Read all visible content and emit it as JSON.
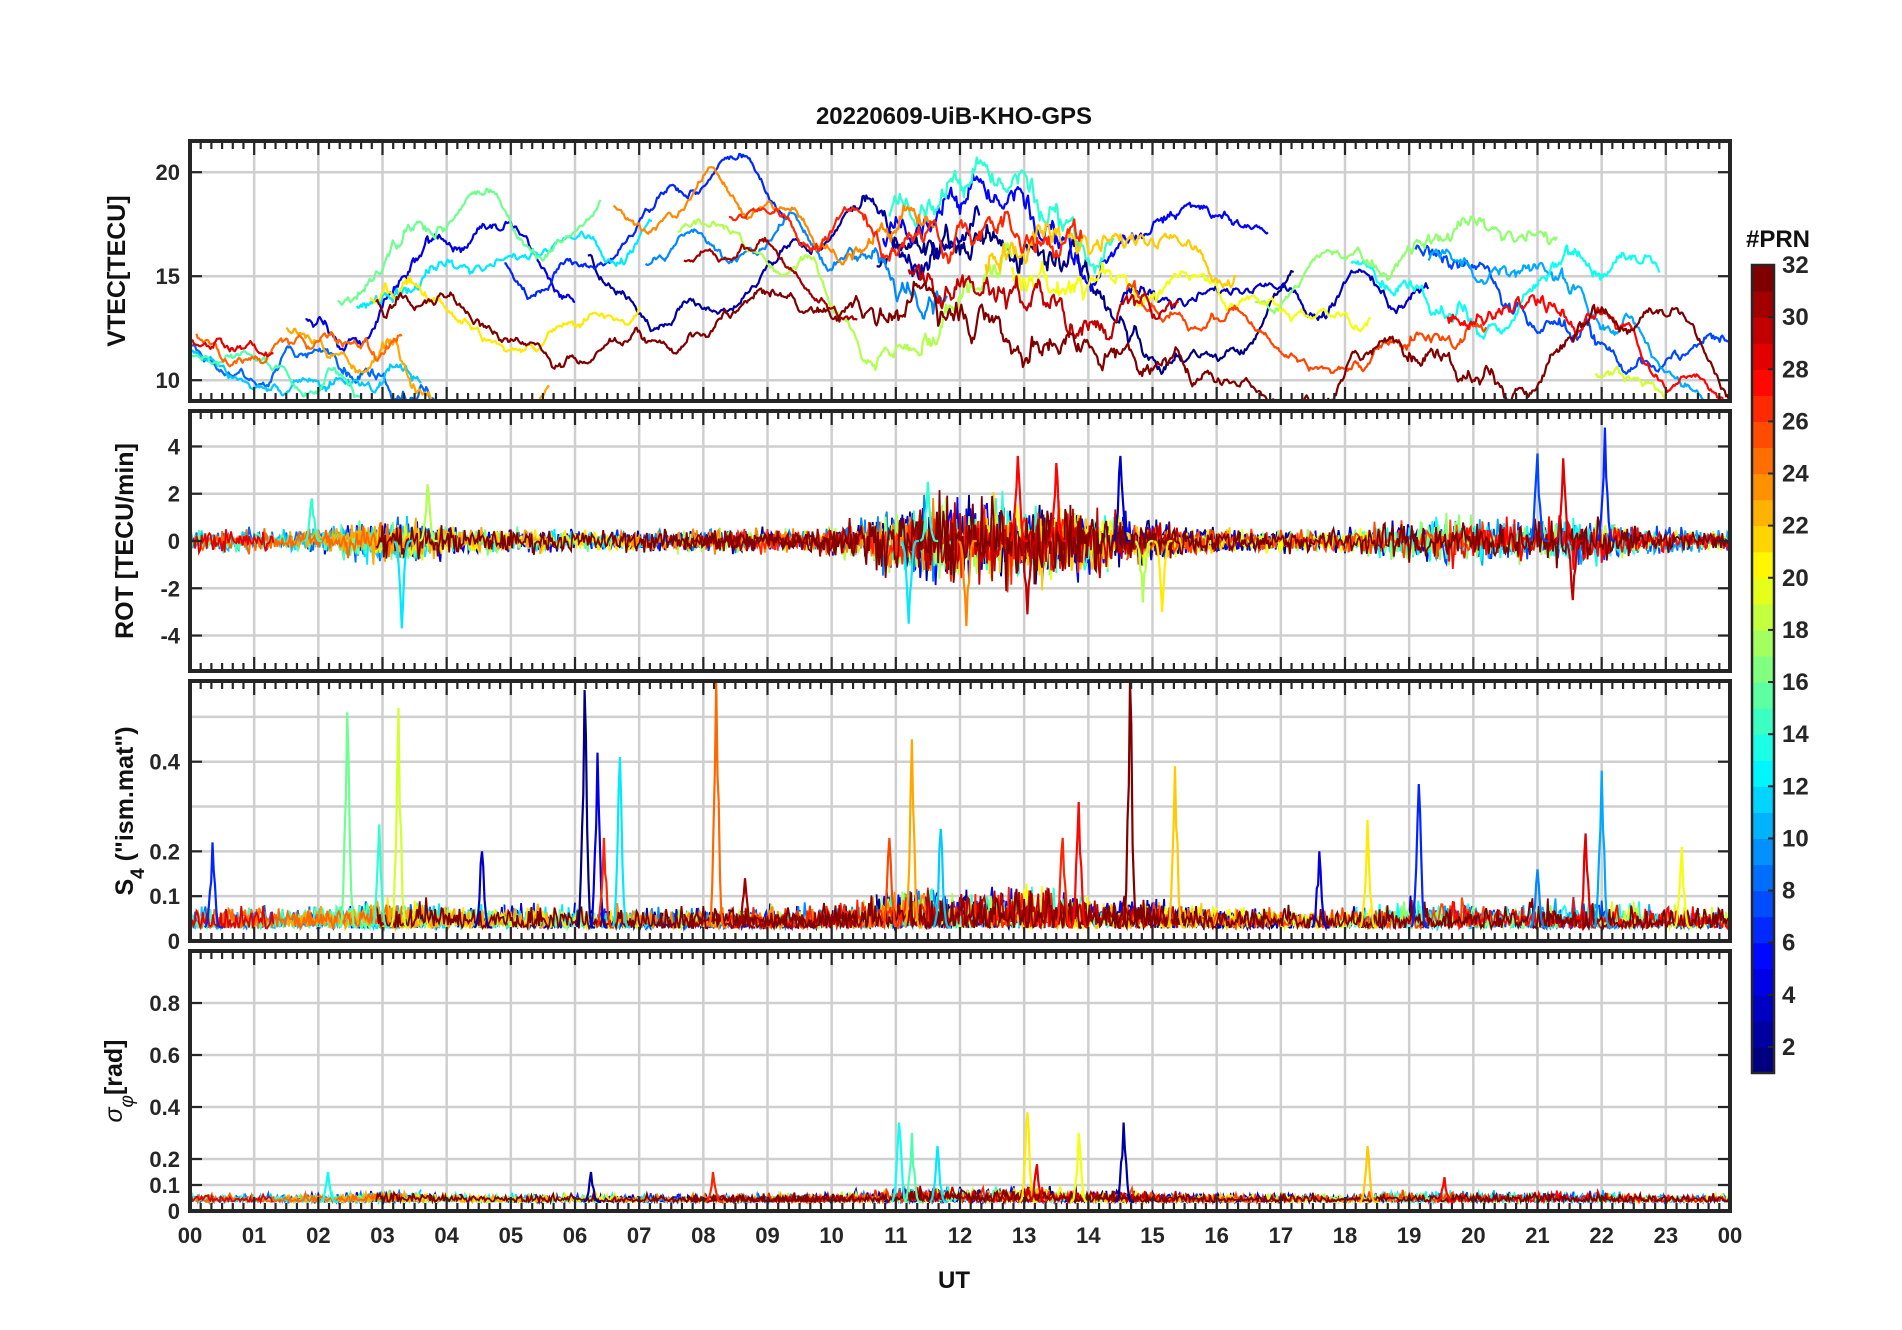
{
  "chart_data": {
    "type": "line",
    "title": "20220609-UiB-KHO-GPS",
    "xlabel": "UT",
    "x_range_hours": [
      0,
      24
    ],
    "xtick_labels": [
      "00",
      "01",
      "02",
      "03",
      "04",
      "05",
      "06",
      "07",
      "08",
      "09",
      "10",
      "11",
      "12",
      "13",
      "14",
      "15",
      "16",
      "17",
      "18",
      "19",
      "20",
      "21",
      "22",
      "23",
      "00"
    ],
    "colorbar": {
      "label": "#PRN",
      "colormap": "jet",
      "range": [
        1,
        32
      ],
      "tick_labels": [
        "2",
        "4",
        "6",
        "8",
        "10",
        "12",
        "14",
        "16",
        "18",
        "20",
        "22",
        "24",
        "26",
        "28",
        "30",
        "32"
      ]
    },
    "panels": [
      {
        "id": "vtec",
        "ylabel": "VTEC[TECU]",
        "ylim": [
          9,
          21.5
        ],
        "ytick_values": [
          10,
          15,
          20
        ],
        "ytick_labels": [
          "10",
          "15",
          "20"
        ],
        "baseline_by_hour": [
          13,
          12.8,
          13,
          13.8,
          14.5,
          14,
          15.5,
          16,
          16,
          15.5,
          15,
          15.5,
          16,
          15.5,
          15,
          14.5,
          14,
          14,
          14.5,
          15.5,
          15.5,
          14.5,
          13,
          11.5,
          11
        ]
      },
      {
        "id": "rot",
        "ylabel": "ROT [TECU/min]",
        "ylim": [
          -5.5,
          5.5
        ],
        "ytick_values": [
          -4,
          -2,
          0,
          2,
          4
        ],
        "ytick_labels": [
          "-4",
          "-2",
          "0",
          "2",
          "4"
        ]
      },
      {
        "id": "s4",
        "ylabel_main": "S",
        "ylabel_sub": "4",
        "ylabel_rest": " (\"ism.mat\")",
        "ylim": [
          0,
          0.58
        ],
        "ytick_values": [
          0,
          0.1,
          0.2,
          0.4
        ],
        "ytick_labels": [
          "0",
          "0.1",
          "0.2",
          "0.4"
        ],
        "grid_values": [
          0.05,
          0.1,
          0.2,
          0.3,
          0.4,
          0.5
        ]
      },
      {
        "id": "sigma",
        "ylabel_main": "σ",
        "ylabel_sub": "φ",
        "ylabel_rest": "[rad]",
        "ylim": [
          0,
          1.0
        ],
        "ytick_values": [
          0,
          0.1,
          0.2,
          0.4,
          0.6,
          0.8
        ],
        "ytick_labels": [
          "0",
          "0.1",
          "0.2",
          "0.4",
          "0.6",
          "0.8"
        ],
        "grid_values": [
          0.05,
          0.1,
          0.2,
          0.4,
          0.6,
          0.8
        ]
      }
    ],
    "series": [
      {
        "prn": 1,
        "start": 10.7,
        "end": 17.2,
        "base": 14.8
      },
      {
        "prn": 2,
        "start": 6.2,
        "end": 12.3,
        "base": 15.2
      },
      {
        "prn": 3,
        "start": 14.5,
        "end": 19.3,
        "base": 13.8
      },
      {
        "prn": 4,
        "start": 1.8,
        "end": 6.0,
        "base": 14.0
      },
      {
        "prn": 5,
        "start": 10.8,
        "end": 16.8,
        "base": 16.5
      },
      {
        "prn": 6,
        "start": 4.9,
        "end": 9.3,
        "base": 15.8
      },
      {
        "prn": 7,
        "start": 19.1,
        "end": 24.0,
        "base": 15.8
      },
      {
        "prn": 8,
        "start": 0.0,
        "end": 4.0,
        "base": 12.8
      },
      {
        "prn": 9,
        "start": 7.1,
        "end": 11.8,
        "base": 14.5
      },
      {
        "prn": 10,
        "start": 19.3,
        "end": 24.0,
        "base": 15.2
      },
      {
        "prn": 11,
        "start": 0.0,
        "end": 3.6,
        "base": 12.5
      },
      {
        "prn": 12,
        "start": 2.6,
        "end": 7.2,
        "base": 14.3
      },
      {
        "prn": 13,
        "start": 18.1,
        "end": 22.9,
        "base": 15.5
      },
      {
        "prn": 14,
        "start": 10.9,
        "end": 14.4,
        "base": 17.5
      },
      {
        "prn": 15,
        "start": 0.0,
        "end": 3.0,
        "base": 12.0
      },
      {
        "prn": 16,
        "start": 2.3,
        "end": 6.4,
        "base": 14.5
      },
      {
        "prn": 17,
        "start": 16.6,
        "end": 21.3,
        "base": 14.0
      },
      {
        "prn": 18,
        "start": 7.6,
        "end": 12.8,
        "base": 16.2
      },
      {
        "prn": 19,
        "start": 21.9,
        "end": 24.0,
        "base": 11.2
      },
      {
        "prn": 20,
        "start": 12.8,
        "end": 18.4,
        "base": 14.5
      },
      {
        "prn": 21,
        "start": 2.8,
        "end": 7.0,
        "base": 14.6
      },
      {
        "prn": 22,
        "start": 12.4,
        "end": 16.3,
        "base": 15.0
      },
      {
        "prn": 23,
        "start": 1.5,
        "end": 5.6,
        "base": 13.5
      },
      {
        "prn": 24,
        "start": 6.6,
        "end": 11.6,
        "base": 17.5
      },
      {
        "prn": 25,
        "start": 0.1,
        "end": 3.3,
        "base": 13.2
      },
      {
        "prn": 26,
        "start": 14.6,
        "end": 20.2,
        "base": 14.2
      },
      {
        "prn": 27,
        "start": 8.4,
        "end": 13.9,
        "base": 17.0
      },
      {
        "prn": 28,
        "start": 19.6,
        "end": 24.0,
        "base": 12.5
      },
      {
        "prn": 29,
        "start": 0.0,
        "end": 1.3,
        "base": 13.0
      },
      {
        "prn": 30,
        "start": 11.2,
        "end": 15.4,
        "base": 14.5
      },
      {
        "prn": 31,
        "start": 7.7,
        "end": 10.4,
        "base": 14.8
      },
      {
        "prn": 32,
        "start": 2.9,
        "end": 24.0,
        "base": 14.5
      }
    ],
    "s4_spikes": [
      {
        "t": 0.35,
        "v": 0.22,
        "prn": 6
      },
      {
        "t": 2.45,
        "v": 0.51,
        "prn": 16
      },
      {
        "t": 2.95,
        "v": 0.26,
        "prn": 14
      },
      {
        "t": 3.25,
        "v": 0.52,
        "prn": 19
      },
      {
        "t": 4.55,
        "v": 0.2,
        "prn": 3
      },
      {
        "t": 6.15,
        "v": 0.56,
        "prn": 1
      },
      {
        "t": 6.35,
        "v": 0.42,
        "prn": 4
      },
      {
        "t": 6.45,
        "v": 0.23,
        "prn": 27
      },
      {
        "t": 6.7,
        "v": 0.41,
        "prn": 12
      },
      {
        "t": 8.2,
        "v": 0.58,
        "prn": 25
      },
      {
        "t": 8.65,
        "v": 0.14,
        "prn": 31
      },
      {
        "t": 10.9,
        "v": 0.23,
        "prn": 26
      },
      {
        "t": 11.25,
        "v": 0.45,
        "prn": 23
      },
      {
        "t": 11.7,
        "v": 0.25,
        "prn": 11
      },
      {
        "t": 13.6,
        "v": 0.23,
        "prn": 27
      },
      {
        "t": 13.85,
        "v": 0.31,
        "prn": 28
      },
      {
        "t": 14.65,
        "v": 0.58,
        "prn": 32
      },
      {
        "t": 15.35,
        "v": 0.39,
        "prn": 22
      },
      {
        "t": 17.6,
        "v": 0.2,
        "prn": 4
      },
      {
        "t": 18.35,
        "v": 0.27,
        "prn": 21
      },
      {
        "t": 19.15,
        "v": 0.35,
        "prn": 6
      },
      {
        "t": 21.0,
        "v": 0.16,
        "prn": 9
      },
      {
        "t": 21.75,
        "v": 0.24,
        "prn": 29
      },
      {
        "t": 22.0,
        "v": 0.38,
        "prn": 10
      },
      {
        "t": 23.25,
        "v": 0.21,
        "prn": 20
      }
    ],
    "sigma_spikes": [
      {
        "t": 2.15,
        "v": 0.15,
        "prn": 13
      },
      {
        "t": 6.25,
        "v": 0.15,
        "prn": 2
      },
      {
        "t": 8.15,
        "v": 0.15,
        "prn": 27
      },
      {
        "t": 11.05,
        "v": 0.34,
        "prn": 13
      },
      {
        "t": 11.25,
        "v": 0.3,
        "prn": 15
      },
      {
        "t": 11.65,
        "v": 0.25,
        "prn": 12
      },
      {
        "t": 13.05,
        "v": 0.38,
        "prn": 21
      },
      {
        "t": 13.2,
        "v": 0.18,
        "prn": 29
      },
      {
        "t": 13.85,
        "v": 0.3,
        "prn": 20
      },
      {
        "t": 14.55,
        "v": 0.34,
        "prn": 2
      },
      {
        "t": 18.35,
        "v": 0.25,
        "prn": 22
      },
      {
        "t": 19.55,
        "v": 0.13,
        "prn": 28
      }
    ],
    "rot_spikes": [
      {
        "t": 1.9,
        "v": 1.8,
        "prn": 14
      },
      {
        "t": 3.3,
        "v": -3.7,
        "prn": 12
      },
      {
        "t": 3.7,
        "v": 2.4,
        "prn": 18
      },
      {
        "t": 11.2,
        "v": -3.5,
        "prn": 12
      },
      {
        "t": 11.5,
        "v": 2.5,
        "prn": 14
      },
      {
        "t": 12.1,
        "v": -3.6,
        "prn": 24
      },
      {
        "t": 12.9,
        "v": 3.6,
        "prn": 28
      },
      {
        "t": 13.05,
        "v": -3.1,
        "prn": 30
      },
      {
        "t": 13.5,
        "v": 3.3,
        "prn": 28
      },
      {
        "t": 14.5,
        "v": 3.6,
        "prn": 3
      },
      {
        "t": 14.85,
        "v": -2.6,
        "prn": 18
      },
      {
        "t": 15.15,
        "v": -3.0,
        "prn": 21
      },
      {
        "t": 21.0,
        "v": 3.7,
        "prn": 7
      },
      {
        "t": 21.4,
        "v": 3.5,
        "prn": 29
      },
      {
        "t": 21.55,
        "v": -2.5,
        "prn": 30
      },
      {
        "t": 22.05,
        "v": 4.8,
        "prn": 6
      }
    ]
  }
}
